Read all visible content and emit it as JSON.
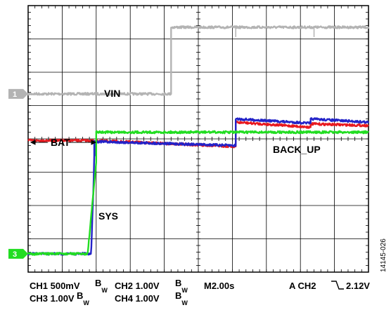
{
  "chart_data": {
    "type": "line",
    "title": "",
    "xlabel": "",
    "ylabel": "",
    "grid": true,
    "divisions": {
      "x": 10,
      "y": 8
    },
    "xlim": [
      0,
      10
    ],
    "ylim": [
      0,
      8
    ],
    "x_units": "divisions (M2.00s per division)",
    "y_units": "divisions",
    "series": [
      {
        "name": "VIN",
        "color": "#b3b3b3",
        "x": [
          0,
          4.2,
          4.2,
          10
        ],
        "y": [
          5.35,
          5.35,
          7.35,
          7.35
        ],
        "spikes_x": [
          6.1,
          8.4
        ]
      },
      {
        "name": "BACK_UP",
        "color": "#e8191f",
        "x": [
          0,
          1.95,
          6.1,
          6.1,
          8.3,
          8.3,
          10
        ],
        "y": [
          3.95,
          3.95,
          3.77,
          4.5,
          4.35,
          4.45,
          4.4
        ]
      },
      {
        "name": "SYS",
        "color": "#2323c8",
        "x": [
          0,
          1.85,
          1.95,
          1.95,
          6.1,
          6.1,
          8.3,
          8.3,
          10
        ],
        "y": [
          0.55,
          0.55,
          3.5,
          3.92,
          3.8,
          4.6,
          4.47,
          4.6,
          4.5
        ]
      },
      {
        "name": "BAT",
        "color": "#22dd22",
        "x": [
          0,
          1.75,
          2.0,
          2.0,
          10
        ],
        "y": [
          0.55,
          0.55,
          3.3,
          4.2,
          4.2
        ]
      }
    ],
    "annotations": [
      {
        "text": "VIN",
        "x": 2.2,
        "y": 5.8
      },
      {
        "text": "BAT",
        "x": 0.6,
        "y": 4.1
      },
      {
        "text": "BACK_UP",
        "x": 7.1,
        "y": 3.9
      },
      {
        "text": "SYS",
        "x": 2.05,
        "y": 1.5
      }
    ],
    "channel_markers": [
      {
        "label": "1",
        "y": 5.35,
        "color": "#b3b3b3"
      },
      {
        "label": "3",
        "y": 0.55,
        "color": "#22dd22"
      }
    ]
  },
  "footer": {
    "line1": {
      "ch1": "CH1 500mV",
      "ch2": "CH2 1.00V",
      "time": "M2.00s",
      "trigger": "A  CH2",
      "trigger_level": "2.12V"
    },
    "line2": {
      "ch3": "CH3 1.00V",
      "ch4": "CH4 1.00V"
    },
    "bw": {
      "b": "B",
      "w": "W"
    }
  },
  "figure_id": "14145-026"
}
